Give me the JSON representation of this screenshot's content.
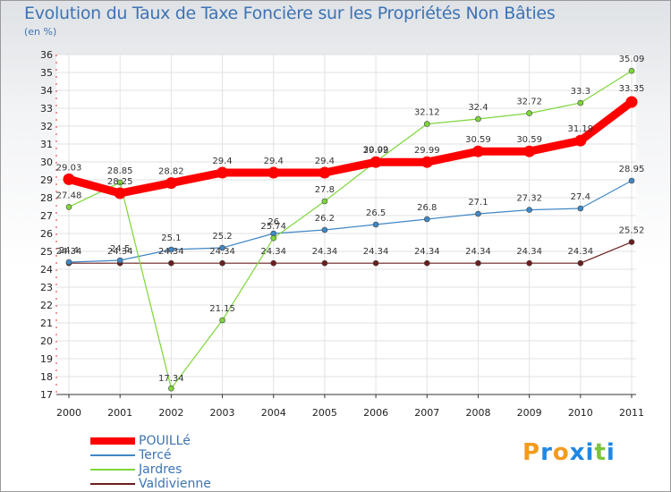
{
  "chart_data": {
    "type": "line",
    "title": "Evolution du Taux de Taxe Foncière sur les Propriétés Non Bâties",
    "subtitle": "(en %)",
    "xlabel": "",
    "ylabel": "",
    "ylim": [
      17,
      36
    ],
    "yticks": [
      "17",
      "18",
      "19",
      "20",
      "21",
      "22",
      "23",
      "24",
      "25",
      "26",
      "27",
      "28",
      "29",
      "30",
      "31",
      "32",
      "33",
      "34",
      "35",
      "36"
    ],
    "categories": [
      "2000",
      "2001",
      "2002",
      "2003",
      "2004",
      "2005",
      "2006",
      "2007",
      "2008",
      "2009",
      "2010",
      "2011"
    ],
    "series": [
      {
        "name": "POUILLé",
        "color": "#ff0000",
        "values": [
          29.03,
          28.25,
          28.82,
          29.4,
          29.4,
          29.4,
          29.99,
          29.99,
          30.59,
          30.59,
          31.19,
          33.35
        ],
        "labels": [
          "29.03",
          "28.25",
          "28.82",
          "29.4",
          "29.4",
          "29.4",
          "29.99",
          "29.99",
          "30.59",
          "30.59",
          "31.19",
          "33.35"
        ]
      },
      {
        "name": "Tercé",
        "color": "#3f87c5",
        "values": [
          24.4,
          24.5,
          25.1,
          25.2,
          26.0,
          26.2,
          26.5,
          26.8,
          27.1,
          27.32,
          27.4,
          28.95
        ],
        "labels": [
          "24.4",
          "24.5",
          "25.1",
          "25.2",
          "26",
          "26.2",
          "26.5",
          "26.8",
          "27.1",
          "27.32",
          "27.4",
          "28.95"
        ]
      },
      {
        "name": "Jardres",
        "color": "#7ed63a",
        "values": [
          27.48,
          28.85,
          17.34,
          21.15,
          25.74,
          27.8,
          30.02,
          32.12,
          32.4,
          32.72,
          33.3,
          35.09
        ],
        "labels": [
          "27.48",
          "28.85",
          "17.34",
          "21.15",
          "25.74",
          "27.8",
          "30.02",
          "32.12",
          "32.4",
          "32.72",
          "33.3",
          "35.09"
        ]
      },
      {
        "name": "Valdivienne",
        "color": "#6b1e1e",
        "values": [
          24.34,
          24.34,
          24.34,
          24.34,
          24.34,
          24.34,
          24.34,
          24.34,
          24.34,
          24.34,
          24.34,
          25.52
        ],
        "labels": [
          "24.34",
          "24.34",
          "24.34",
          "24.34",
          "24.34",
          "24.34",
          "24.34",
          "24.34",
          "24.34",
          "24.34",
          "24.34",
          "25.52"
        ]
      }
    ],
    "legend_position": "bottom-left",
    "grid": true
  },
  "logo": {
    "text": "Proxiti",
    "colors": [
      "#f39a1e",
      "#1e88e5",
      "#f39a1e",
      "#1e88e5",
      "#1e88e5",
      "#7cc43a",
      "#1e88e5"
    ]
  }
}
